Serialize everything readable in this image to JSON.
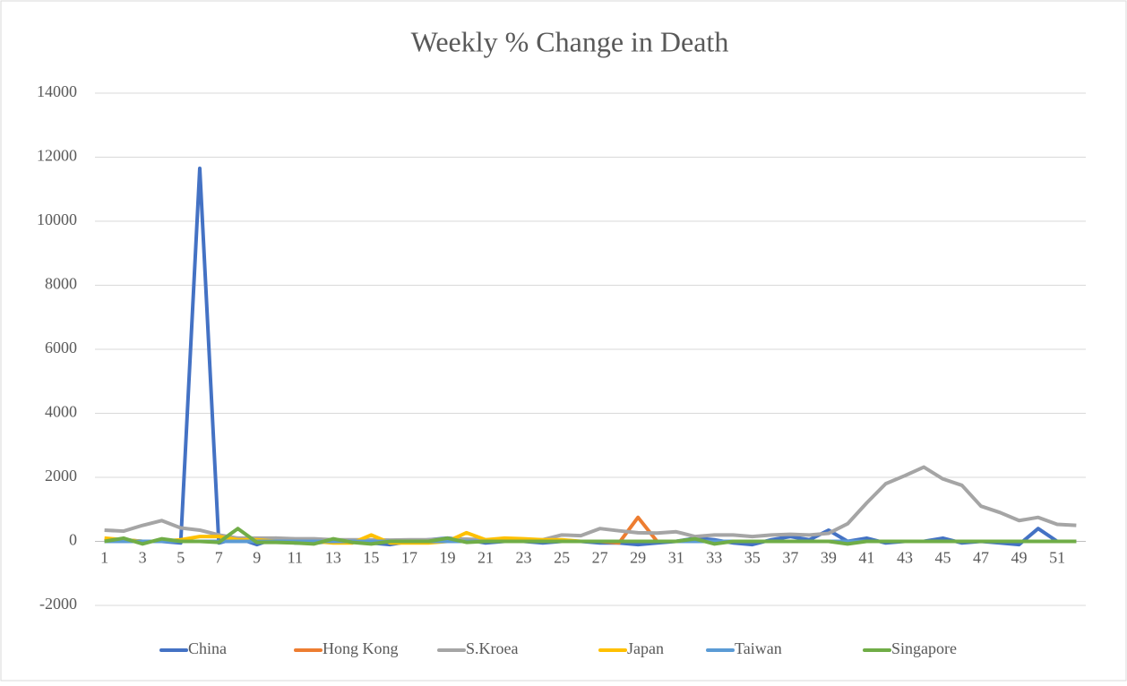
{
  "chart_data": {
    "type": "line",
    "title": "Weekly % Change in Death",
    "categories": [
      1,
      null,
      3,
      null,
      5,
      null,
      7,
      null,
      9,
      null,
      11,
      null,
      13,
      null,
      15,
      null,
      17,
      null,
      19,
      null,
      21,
      null,
      23,
      null,
      25,
      null,
      27,
      null,
      29,
      null,
      31,
      null,
      33,
      null,
      35,
      null,
      37,
      null,
      39,
      null,
      41,
      null,
      43,
      null,
      45,
      null,
      47,
      null,
      49,
      null,
      51,
      null
    ],
    "series": [
      {
        "name": "China",
        "color": "#4472c4",
        "values": [
          0,
          50,
          0,
          0,
          -50,
          11650,
          -50,
          100,
          -100,
          100,
          -50,
          -50,
          0,
          0,
          -50,
          -100,
          0,
          50,
          100,
          50,
          -50,
          0,
          0,
          -50,
          0,
          0,
          -50,
          -50,
          -100,
          -50,
          0,
          100,
          50,
          -50,
          -100,
          50,
          150,
          50,
          350,
          0,
          100,
          -50,
          0,
          0,
          100,
          -50,
          0,
          -50,
          -100,
          400,
          0,
          0
        ]
      },
      {
        "name": "Hong Kong",
        "color": "#ed7d31",
        "values": [
          0,
          0,
          0,
          0,
          0,
          0,
          0,
          0,
          0,
          0,
          0,
          0,
          0,
          0,
          0,
          0,
          0,
          0,
          0,
          0,
          0,
          0,
          0,
          0,
          0,
          0,
          0,
          -50,
          750,
          0,
          0,
          0,
          0,
          0,
          0,
          0,
          0,
          0,
          0,
          0,
          0,
          0,
          0,
          0,
          0,
          0,
          0,
          0,
          0,
          0,
          0,
          0
        ]
      },
      {
        "name": "S.Kroea",
        "color": "#a5a5a5",
        "values": [
          350,
          320,
          500,
          650,
          420,
          350,
          200,
          100,
          100,
          100,
          80,
          80,
          50,
          50,
          50,
          40,
          50,
          50,
          80,
          70,
          50,
          50,
          50,
          50,
          200,
          180,
          400,
          330,
          270,
          260,
          300,
          150,
          200,
          200,
          150,
          200,
          220,
          200,
          250,
          550,
          1200,
          1800,
          2050,
          2320,
          1950,
          1750,
          1100,
          900,
          650,
          750,
          530,
          500
        ]
      },
      {
        "name": "Japan",
        "color": "#ffc000",
        "values": [
          100,
          50,
          0,
          0,
          50,
          150,
          150,
          50,
          50,
          0,
          0,
          0,
          -50,
          -50,
          200,
          -50,
          -50,
          -50,
          0,
          270,
          50,
          100,
          80,
          50,
          50,
          0,
          0,
          0,
          0,
          0,
          0,
          0,
          0,
          0,
          0,
          0,
          0,
          0,
          0,
          0,
          0,
          0,
          0,
          0,
          0,
          0,
          0,
          0,
          0,
          0,
          0,
          0
        ]
      },
      {
        "name": "Taiwan",
        "color": "#5b9bd5",
        "values": [
          0,
          0,
          0,
          0,
          0,
          0,
          0,
          0,
          0,
          0,
          0,
          0,
          0,
          0,
          0,
          0,
          0,
          0,
          0,
          0,
          0,
          0,
          0,
          0,
          0,
          0,
          0,
          0,
          0,
          0,
          0,
          0,
          0,
          0,
          0,
          0,
          0,
          0,
          0,
          0,
          0,
          0,
          0,
          0,
          0,
          0,
          0,
          0,
          0,
          0,
          0,
          0
        ]
      },
      {
        "name": "Singapore",
        "color": "#70ad47",
        "values": [
          0,
          100,
          -80,
          80,
          0,
          0,
          -30,
          400,
          -30,
          -30,
          -50,
          -80,
          80,
          -30,
          -80,
          0,
          0,
          0,
          100,
          -30,
          0,
          0,
          0,
          0,
          0,
          0,
          0,
          0,
          0,
          0,
          0,
          80,
          -80,
          0,
          0,
          0,
          0,
          0,
          0,
          -80,
          0,
          0,
          0,
          0,
          0,
          0,
          0,
          0,
          0,
          0,
          0,
          0
        ]
      }
    ],
    "ylim": [
      -2000,
      14000
    ],
    "yticks": [
      -2000,
      0,
      2000,
      4000,
      6000,
      8000,
      10000,
      12000,
      14000
    ],
    "grid": true,
    "legend": "bottom"
  }
}
